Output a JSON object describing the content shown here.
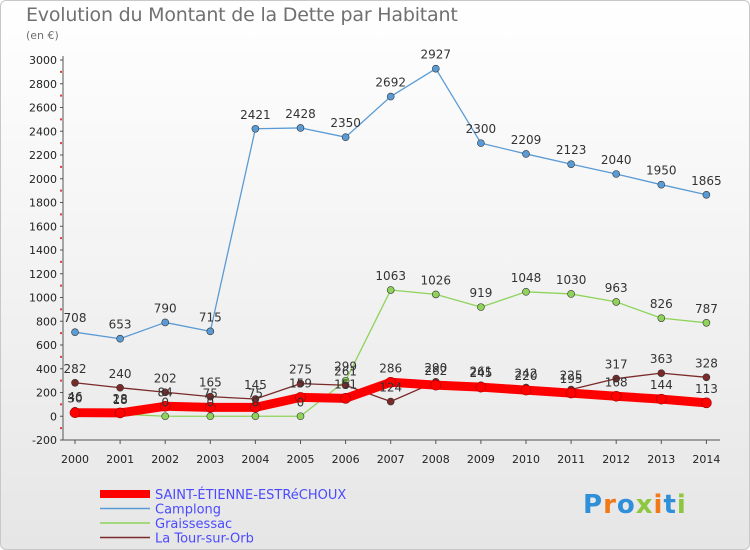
{
  "chart_data": {
    "type": "line",
    "title": "Evolution du Montant de la Dette par Habitant",
    "unit_label": "(en €)",
    "x": [
      "2000",
      "2001",
      "2002",
      "2003",
      "2004",
      "2005",
      "2006",
      "2007",
      "2008",
      "2009",
      "2010",
      "2011",
      "2012",
      "2013",
      "2014"
    ],
    "ylim": [
      -200,
      3000
    ],
    "yticks": [
      -200,
      0,
      200,
      400,
      600,
      800,
      1000,
      1200,
      1400,
      1600,
      1800,
      2000,
      2200,
      2400,
      2600,
      2800,
      3000
    ],
    "grid": false,
    "legend_position": "bottom-left",
    "series": [
      {
        "name": "SAINT-ÉTIENNE-ESTRéCHOUX",
        "color": "#ff0000",
        "values": [
          30,
          28,
          84,
          75,
          75,
          159,
          151,
          286,
          262,
          245,
          220,
          195,
          168,
          144,
          113
        ]
      },
      {
        "name": "Camplong",
        "color": "#5b9bd5",
        "values": [
          708,
          653,
          790,
          715,
          2421,
          2428,
          2350,
          2692,
          2927,
          2300,
          2209,
          2123,
          2040,
          1950,
          1865
        ]
      },
      {
        "name": "Graissessac",
        "color": "#8fd35a",
        "values": [
          46,
          18,
          0,
          0,
          0,
          0,
          299,
          1063,
          1026,
          919,
          1048,
          1030,
          963,
          826,
          787
        ]
      },
      {
        "name": "La Tour-sur-Orb",
        "color": "#7b2a2a",
        "values": [
          282,
          240,
          202,
          165,
          145,
          275,
          261,
          124,
          290,
          261,
          242,
          225,
          317,
          363,
          328
        ]
      }
    ]
  },
  "logo": {
    "text": "Proxiti",
    "colors": [
      "#2f8fd8",
      "#f07a1a",
      "#2f8fd8",
      "#8dc63f",
      "#f07a1a",
      "#2f8fd8",
      "#8dc63f"
    ]
  }
}
